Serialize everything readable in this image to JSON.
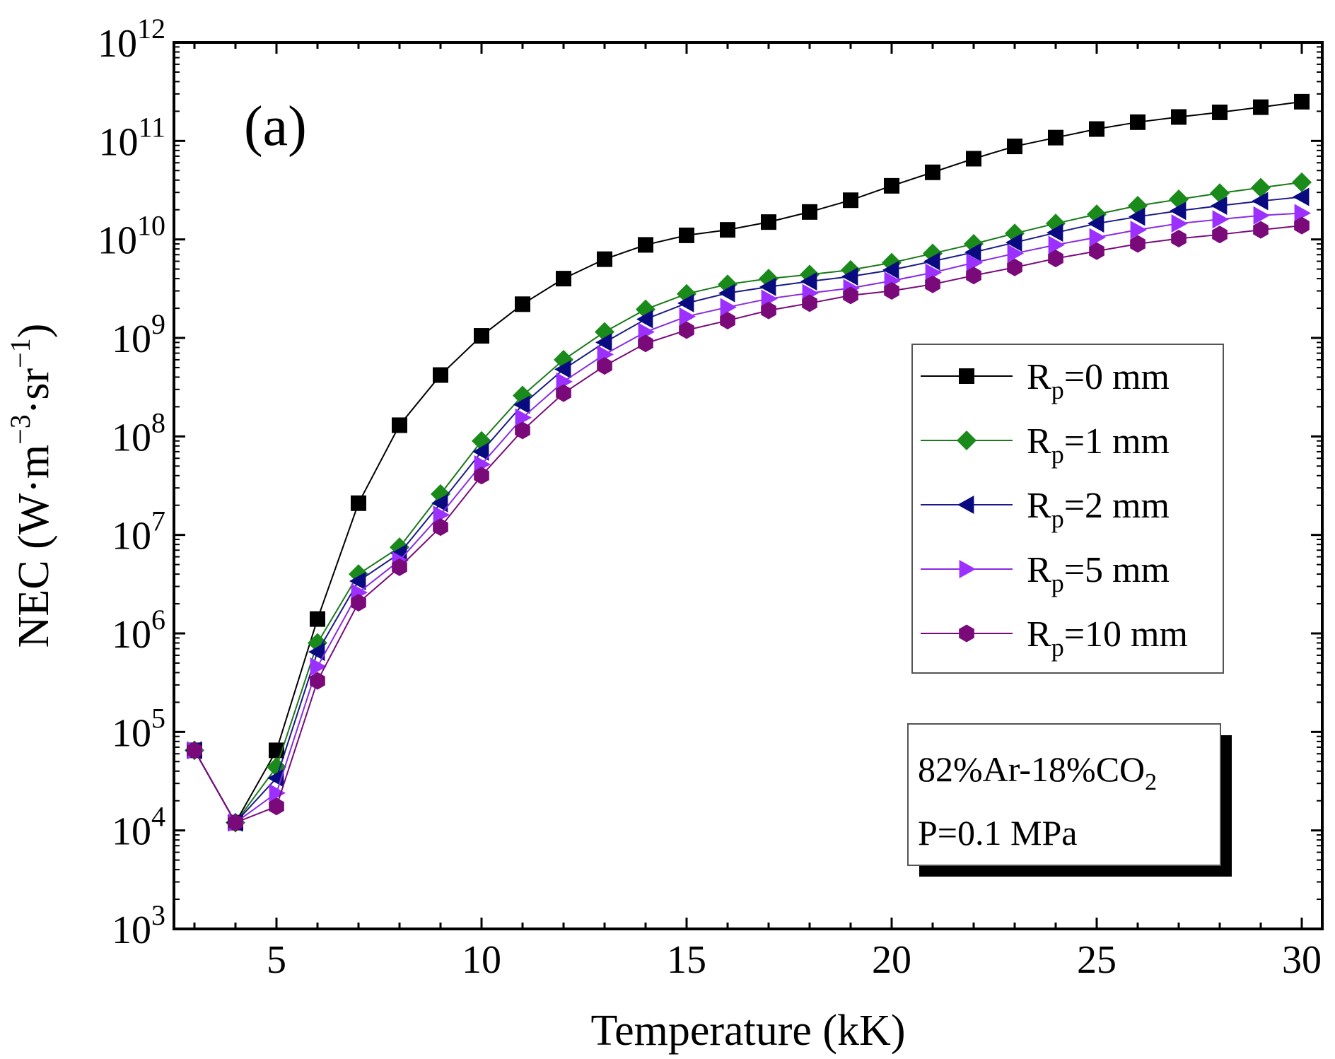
{
  "chart_data": {
    "type": "line",
    "panel_label": "(a)",
    "xlabel": "Temperature (kK)",
    "ylabel": {
      "base": "NEC (W·m",
      "exp1": "−3",
      "mid": "·sr",
      "exp2": "−1",
      "end": ")"
    },
    "xlim": [
      2.5,
      30.5
    ],
    "ylim_log10": [
      3,
      12
    ],
    "yscale": "log",
    "x_ticks": [
      5,
      10,
      15,
      20,
      25,
      30
    ],
    "x_tick_labels": [
      "5",
      "10",
      "15",
      "20",
      "25",
      "30"
    ],
    "y_ticks_exp": [
      3,
      4,
      5,
      6,
      7,
      8,
      9,
      10,
      11,
      12
    ],
    "y_tick_base": "10",
    "y_tick_exps": [
      "3",
      "4",
      "5",
      "6",
      "7",
      "8",
      "9",
      "10",
      "11",
      "12"
    ],
    "x": [
      3,
      4,
      5,
      6,
      7,
      8,
      9,
      10,
      11,
      12,
      13,
      14,
      15,
      16,
      17,
      18,
      19,
      20,
      21,
      22,
      23,
      24,
      25,
      26,
      27,
      28,
      29,
      30
    ],
    "series": [
      {
        "name": "Rp=0 mm",
        "label_main": "R",
        "label_sub": "p",
        "label_rest": "=0 mm",
        "color": "#000000",
        "fill": "#000000",
        "marker": "square",
        "values": [
          65000.0,
          12000.0,
          65000.0,
          1400000.0,
          21000000.0,
          130000000.0,
          420000000.0,
          1050000000.0,
          2200000000.0,
          4000000000.0,
          6300000000.0,
          8800000000.0,
          11000000000.0,
          12500000000.0,
          15000000000.0,
          19000000000.0,
          25000000000.0,
          35000000000.0,
          48000000000.0,
          66000000000.0,
          88000000000.0,
          108000000000.0,
          132000000000.0,
          155000000000.0,
          175000000000.0,
          195000000000.0,
          220000000000.0,
          250000000000.0
        ]
      },
      {
        "name": "Rp=1 mm",
        "label_main": "R",
        "label_sub": "p",
        "label_rest": "=1 mm",
        "color": "#1a7a1a",
        "fill": "#1a8a1a",
        "marker": "diamond",
        "values": [
          65000.0,
          12000.0,
          44000.0,
          800000.0,
          4000000.0,
          7500000.0,
          26000000.0,
          90000000.0,
          260000000.0,
          600000000.0,
          1150000000.0,
          1950000000.0,
          2800000000.0,
          3500000000.0,
          4000000000.0,
          4400000000.0,
          4900000000.0,
          5800000000.0,
          7200000000.0,
          9000000000.0,
          11500000000.0,
          14500000000.0,
          18000000000.0,
          22000000000.0,
          25500000000.0,
          29500000000.0,
          33500000000.0,
          38000000000.0
        ]
      },
      {
        "name": "Rp=2 mm",
        "label_main": "R",
        "label_sub": "p",
        "label_rest": "=2 mm",
        "color": "#1a1a8a",
        "fill": "#0a0a80",
        "marker": "triangle-left",
        "values": [
          65000.0,
          12000.0,
          34000.0,
          650000.0,
          3400000.0,
          6500000.0,
          21000000.0,
          70000000.0,
          210000000.0,
          480000000.0,
          900000000.0,
          1550000000.0,
          2250000000.0,
          2850000000.0,
          3300000000.0,
          3750000000.0,
          4200000000.0,
          4900000000.0,
          6000000000.0,
          7400000000.0,
          9300000000.0,
          11700000000.0,
          14500000000.0,
          17000000000.0,
          19500000000.0,
          22000000000.0,
          24500000000.0,
          27000000000.0
        ]
      },
      {
        "name": "Rp=5 mm",
        "label_main": "R",
        "label_sub": "p",
        "label_rest": "=5 mm",
        "color": "#8a2be2",
        "fill": "#9b30ff",
        "marker": "triangle-right",
        "values": [
          65000.0,
          12000.0,
          24000.0,
          460000.0,
          2600000.0,
          5500000.0,
          16000000.0,
          52000000.0,
          155000000.0,
          360000000.0,
          680000000.0,
          1150000000.0,
          1650000000.0,
          2050000000.0,
          2500000000.0,
          2850000000.0,
          3200000000.0,
          3800000000.0,
          4600000000.0,
          5800000000.0,
          7200000000.0,
          8800000000.0,
          10500000000.0,
          12500000000.0,
          14500000000.0,
          16000000000.0,
          17500000000.0,
          18500000000.0
        ]
      },
      {
        "name": "Rp=10 mm",
        "label_main": "R",
        "label_sub": "p",
        "label_rest": "=10 mm",
        "color": "#7a0a7a",
        "fill": "#7a0a7a",
        "marker": "hexagon",
        "values": [
          65000.0,
          12000.0,
          17500.0,
          330000.0,
          2050000.0,
          4700000.0,
          12000000.0,
          40000000.0,
          115000000.0,
          275000000.0,
          520000000.0,
          880000000.0,
          1200000000.0,
          1500000000.0,
          1900000000.0,
          2250000000.0,
          2700000000.0,
          3000000000.0,
          3500000000.0,
          4300000000.0,
          5200000000.0,
          6400000000.0,
          7600000000.0,
          9000000000.0,
          10200000000.0,
          11200000000.0,
          12500000000.0,
          13800000000.0
        ]
      }
    ],
    "legend_position": "center-right",
    "annotation": {
      "line1_main": "82%Ar-18%CO",
      "line1_sub": "2",
      "line2": "P=0.1 MPa",
      "position": "bottom-right"
    },
    "grid": false
  }
}
